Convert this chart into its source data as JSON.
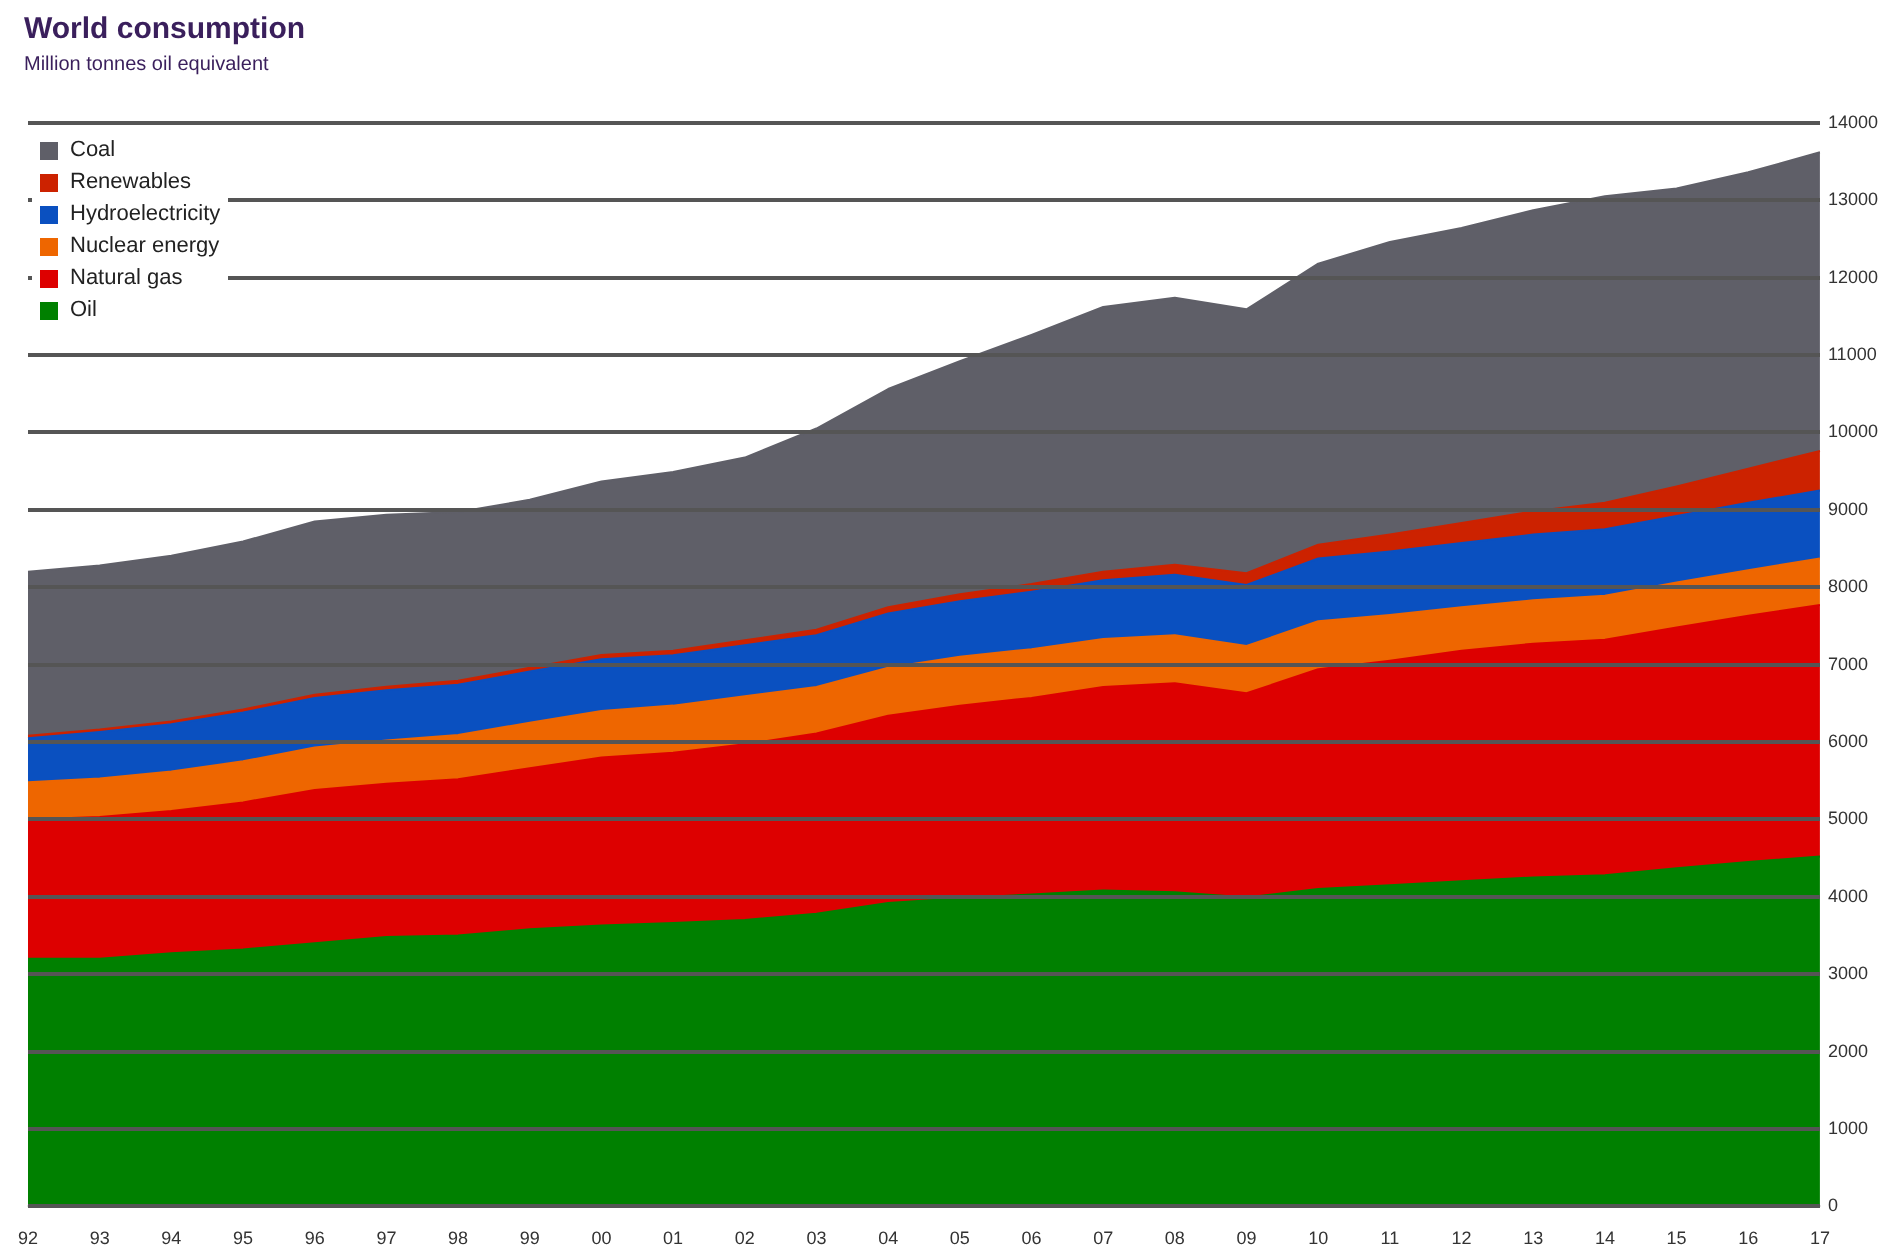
{
  "chart_data": {
    "type": "area",
    "title": "World consumption",
    "subtitle": "Million tonnes oil equivalent",
    "categories": [
      "92",
      "93",
      "94",
      "95",
      "96",
      "97",
      "98",
      "99",
      "00",
      "01",
      "02",
      "03",
      "04",
      "05",
      "06",
      "07",
      "08",
      "09",
      "10",
      "11",
      "12",
      "13",
      "14",
      "15",
      "16",
      "17"
    ],
    "stacked": true,
    "grid": "y",
    "legend": "top left",
    "ylim": [
      0,
      14000
    ],
    "yticks": [
      0,
      1000,
      2000,
      3000,
      4000,
      5000,
      6000,
      7000,
      8000,
      9000,
      10000,
      11000,
      12000,
      13000,
      14000
    ],
    "series": [
      {
        "name": "Oil",
        "color": "#008000",
        "values": [
          3200,
          3200,
          3270,
          3320,
          3400,
          3480,
          3500,
          3580,
          3630,
          3660,
          3700,
          3780,
          3920,
          3980,
          4030,
          4080,
          4060,
          3990,
          4100,
          4150,
          4200,
          4250,
          4280,
          4370,
          4450,
          4520
        ]
      },
      {
        "name": "Natural gas",
        "color": "#dd0000",
        "values": [
          1800,
          1830,
          1840,
          1900,
          1980,
          1980,
          2020,
          2080,
          2170,
          2200,
          2270,
          2330,
          2420,
          2490,
          2540,
          2630,
          2700,
          2640,
          2840,
          2900,
          2980,
          3020,
          3040,
          3110,
          3180,
          3250
        ]
      },
      {
        "name": "Nuclear energy",
        "color": "#ee6600",
        "values": [
          480,
          500,
          510,
          530,
          550,
          560,
          570,
          590,
          600,
          610,
          620,
          600,
          620,
          630,
          630,
          620,
          620,
          610,
          620,
          590,
          560,
          560,
          570,
          580,
          590,
          600
        ]
      },
      {
        "name": "Hydroelectricity",
        "color": "#0a50c0",
        "values": [
          570,
          600,
          610,
          630,
          640,
          650,
          650,
          660,
          670,
          650,
          660,
          670,
          700,
          720,
          740,
          760,
          780,
          790,
          810,
          820,
          830,
          850,
          860,
          860,
          870,
          880
        ]
      },
      {
        "name": "Renewables",
        "color": "#cc2200",
        "values": [
          30,
          30,
          35,
          40,
          40,
          45,
          50,
          50,
          55,
          60,
          65,
          70,
          80,
          90,
          100,
          110,
          130,
          150,
          180,
          220,
          260,
          300,
          340,
          380,
          440,
          510
        ]
      },
      {
        "name": "Coal",
        "color": "#5f5f68",
        "values": [
          2120,
          2120,
          2140,
          2170,
          2240,
          2220,
          2180,
          2170,
          2240,
          2310,
          2360,
          2600,
          2820,
          3010,
          3220,
          3420,
          3450,
          3410,
          3630,
          3780,
          3810,
          3890,
          3960,
          3850,
          3830,
          3860
        ]
      }
    ]
  }
}
